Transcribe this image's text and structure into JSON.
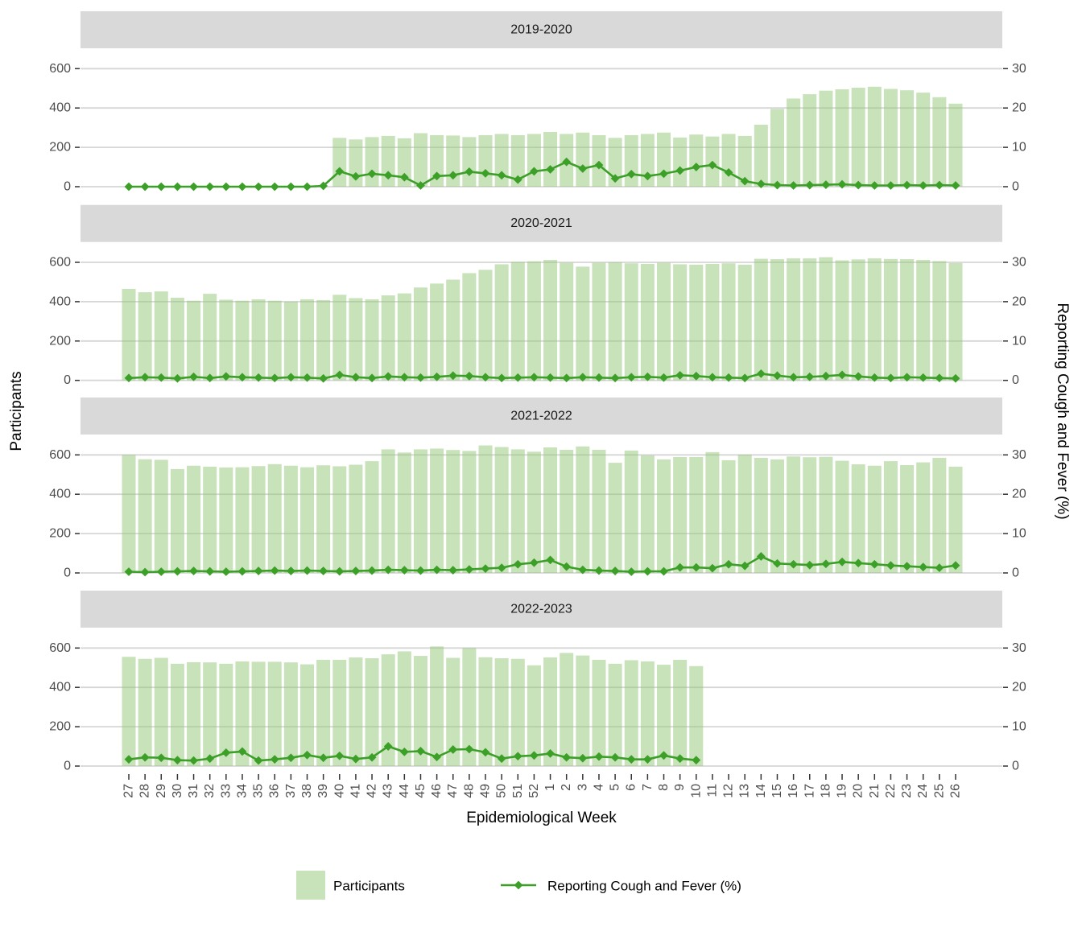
{
  "chart_data": {
    "type": "combo",
    "description": "Faceted bar+line chart: weekly participants (bars, left axis) and percent reporting cough and fever (line with diamond markers, right axis), one panel per season.",
    "xlabel": "Epidemiological Week",
    "ylabel_left": "Participants",
    "ylabel_right": "Reporting Cough and Fever (%)",
    "ylim_left": [
      0,
      600
    ],
    "yticks_left": [
      0,
      200,
      400,
      600
    ],
    "ylim_right": [
      0,
      30
    ],
    "yticks_right": [
      0,
      10,
      20,
      30
    ],
    "grid": "major-horizontal",
    "legend_position": "bottom",
    "legend": [
      "Participants",
      "Reporting Cough and Fever (%)"
    ],
    "categories": [
      "27",
      "28",
      "29",
      "30",
      "31",
      "32",
      "33",
      "34",
      "35",
      "36",
      "37",
      "38",
      "39",
      "40",
      "41",
      "42",
      "43",
      "44",
      "45",
      "46",
      "47",
      "48",
      "49",
      "50",
      "51",
      "52",
      "1",
      "2",
      "3",
      "4",
      "5",
      "6",
      "7",
      "8",
      "9",
      "10",
      "11",
      "12",
      "13",
      "14",
      "15",
      "16",
      "17",
      "18",
      "19",
      "20",
      "21",
      "22",
      "23",
      "24",
      "25",
      "26"
    ],
    "facets": [
      {
        "label": "2019-2020",
        "participants": [
          0,
          0,
          0,
          0,
          0,
          0,
          0,
          0,
          0,
          0,
          0,
          0,
          0,
          248,
          240,
          252,
          258,
          246,
          272,
          262,
          260,
          252,
          262,
          268,
          262,
          268,
          278,
          268,
          275,
          262,
          248,
          262,
          268,
          275,
          250,
          265,
          255,
          268,
          258,
          315,
          395,
          448,
          470,
          488,
          495,
          503,
          508,
          497,
          490,
          478,
          455,
          422
        ],
        "cough_fever_pct": [
          0,
          0,
          0,
          0,
          0,
          0,
          0,
          0,
          0,
          0,
          0,
          0,
          0.2,
          3.9,
          2.6,
          3.3,
          2.9,
          2.4,
          0.3,
          2.7,
          2.9,
          3.8,
          3.4,
          2.9,
          1.8,
          3.9,
          4.4,
          6.3,
          4.6,
          5.5,
          2.1,
          3.2,
          2.7,
          3.3,
          4.1,
          5.0,
          5.5,
          3.6,
          1.4,
          0.7,
          0.4,
          0.3,
          0.4,
          0.5,
          0.6,
          0.4,
          0.3,
          0.3,
          0.4,
          0.3,
          0.4,
          0.3
        ]
      },
      {
        "label": "2020-2021",
        "participants": [
          465,
          448,
          452,
          420,
          405,
          440,
          410,
          405,
          412,
          405,
          400,
          412,
          408,
          435,
          418,
          412,
          432,
          442,
          472,
          492,
          512,
          545,
          562,
          590,
          602,
          605,
          612,
          598,
          578,
          598,
          600,
          595,
          592,
          598,
          590,
          588,
          592,
          595,
          588,
          618,
          616,
          620,
          620,
          626,
          610,
          615,
          620,
          617,
          616,
          612,
          606,
          596
        ],
        "cough_fever_pct": [
          0.6,
          0.8,
          0.7,
          0.5,
          0.9,
          0.6,
          1.0,
          0.8,
          0.7,
          0.6,
          0.8,
          0.7,
          0.5,
          1.4,
          0.8,
          0.6,
          1.0,
          0.8,
          0.7,
          0.9,
          1.2,
          1.1,
          0.8,
          0.6,
          0.7,
          0.8,
          0.7,
          0.6,
          0.8,
          0.7,
          0.6,
          0.8,
          0.9,
          0.7,
          1.3,
          1.1,
          0.8,
          0.7,
          0.6,
          1.7,
          1.2,
          0.8,
          0.9,
          1.1,
          1.4,
          1.0,
          0.7,
          0.6,
          0.8,
          0.7,
          0.6,
          0.5
        ]
      },
      {
        "label": "2021-2022",
        "participants": [
          600,
          578,
          575,
          528,
          545,
          540,
          536,
          537,
          543,
          553,
          545,
          537,
          547,
          542,
          550,
          568,
          628,
          612,
          628,
          632,
          625,
          620,
          648,
          640,
          628,
          616,
          638,
          626,
          643,
          626,
          560,
          622,
          597,
          577,
          589,
          589,
          614,
          573,
          601,
          585,
          577,
          592,
          588,
          590,
          570,
          552,
          545,
          568,
          548,
          562,
          585,
          540
        ],
        "cough_fever_pct": [
          0.3,
          0.2,
          0.3,
          0.4,
          0.5,
          0.4,
          0.3,
          0.4,
          0.5,
          0.6,
          0.5,
          0.6,
          0.5,
          0.4,
          0.5,
          0.6,
          0.8,
          0.7,
          0.6,
          0.8,
          0.7,
          0.9,
          1.1,
          1.3,
          2.2,
          2.6,
          3.3,
          1.6,
          0.8,
          0.6,
          0.5,
          0.3,
          0.4,
          0.4,
          1.4,
          1.4,
          1.2,
          2.2,
          1.8,
          4.2,
          2.4,
          2.2,
          2.0,
          2.3,
          2.8,
          2.5,
          2.2,
          1.9,
          1.7,
          1.5,
          1.3,
          1.9
        ]
      },
      {
        "label": "2022-2023",
        "participants": [
          555,
          545,
          550,
          520,
          528,
          527,
          520,
          532,
          530,
          530,
          527,
          517,
          540,
          540,
          552,
          548,
          568,
          583,
          560,
          608,
          550,
          600,
          553,
          548,
          545,
          512,
          552,
          575,
          562,
          540,
          520,
          538,
          532,
          515,
          540,
          508,
          null,
          null,
          null,
          null,
          null,
          null,
          null,
          null,
          null,
          null,
          null,
          null,
          null,
          null,
          null,
          null
        ],
        "cough_fever_pct": [
          1.7,
          2.2,
          2.1,
          1.5,
          1.4,
          1.9,
          3.4,
          3.7,
          1.4,
          1.7,
          2.1,
          2.8,
          2.1,
          2.6,
          1.8,
          2.2,
          5.0,
          3.6,
          3.8,
          2.3,
          4.2,
          4.3,
          3.5,
          1.9,
          2.5,
          2.7,
          3.2,
          2.2,
          2.0,
          2.4,
          2.2,
          1.7,
          1.7,
          2.7,
          1.9,
          1.5,
          null,
          null,
          null,
          null,
          null,
          null,
          null,
          null,
          null,
          null,
          null,
          null,
          null,
          null,
          null,
          null
        ]
      }
    ]
  },
  "colors": {
    "bar_fill_base": "#91c575",
    "bar_opacity": 0.5,
    "line_green": "#3ca028",
    "strip_bg": "#d9d9d9",
    "strip_text": "#1a1a1a",
    "gridline": "#d6d6d6",
    "axis_tick_text": "#4d4d4d",
    "tick_mark": "#333333",
    "title_text": "#000000"
  }
}
